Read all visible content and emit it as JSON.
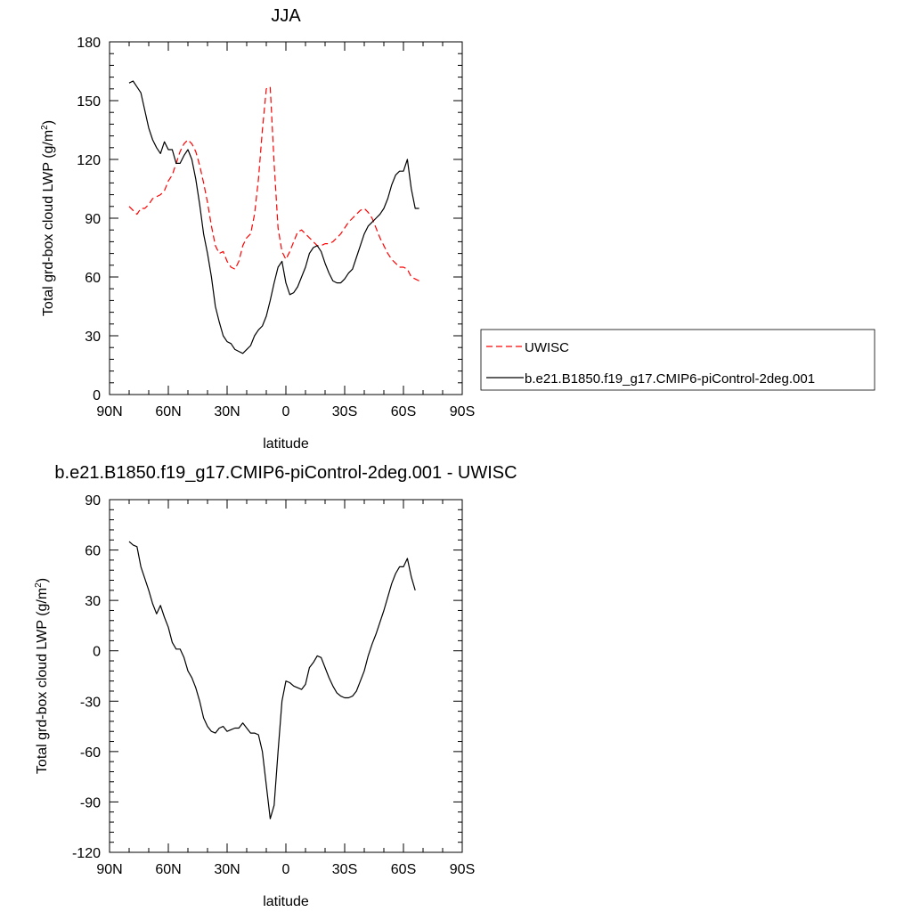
{
  "chart_data": [
    {
      "type": "line",
      "title": "JJA",
      "xlabel": "latitude",
      "ylabel_main": "Total grd-box cloud LWP (g/m",
      "ylabel_sup": "2",
      "ylabel_close": ")",
      "xlim": [
        -90,
        90
      ],
      "ylim": [
        0,
        180
      ],
      "xticks": [
        -90,
        -60,
        -30,
        0,
        30,
        60,
        90
      ],
      "xtick_labels": [
        "90N",
        "60N",
        "30N",
        "0",
        "30S",
        "60S",
        "90S"
      ],
      "yticks": [
        0,
        30,
        60,
        90,
        120,
        150,
        180
      ],
      "ytick_labels": [
        "0",
        "30",
        "60",
        "90",
        "120",
        "150",
        "180"
      ],
      "legend_position": "right",
      "series": [
        {
          "name": "UWISC",
          "color": "#ff0000",
          "dash": "dashed",
          "x": [
            -80,
            -78,
            -76,
            -74,
            -72,
            -70,
            -68,
            -66,
            -64,
            -62,
            -60,
            -58,
            -56,
            -54,
            -52,
            -50,
            -48,
            -46,
            -44,
            -42,
            -40,
            -38,
            -36,
            -34,
            -32,
            -30,
            -28,
            -26,
            -24,
            -22,
            -20,
            -18,
            -16,
            -14,
            -12,
            -10,
            -8,
            -6,
            -4,
            -2,
            0,
            2,
            4,
            6,
            8,
            10,
            12,
            14,
            16,
            18,
            20,
            22,
            24,
            26,
            28,
            30,
            32,
            34,
            36,
            38,
            40,
            42,
            44,
            46,
            48,
            50,
            52,
            54,
            56,
            58,
            60,
            62,
            64,
            66,
            68
          ],
          "y": [
            96,
            94,
            92,
            95,
            95,
            97,
            100,
            101,
            102,
            104,
            109,
            112,
            118,
            124,
            128,
            130,
            128,
            124,
            117,
            108,
            98,
            86,
            76,
            72,
            73,
            68,
            65,
            64,
            68,
            76,
            80,
            82,
            92,
            110,
            135,
            156,
            157,
            118,
            85,
            73,
            69,
            73,
            78,
            83,
            84,
            82,
            80,
            78,
            76,
            76,
            77,
            77,
            78,
            80,
            82,
            85,
            88,
            90,
            92,
            94,
            95,
            93,
            90,
            85,
            80,
            76,
            72,
            69,
            67,
            65,
            65,
            64,
            60,
            59,
            58
          ]
        },
        {
          "name": "b.e21.B1850.f19_g17.CMIP6-piControl-2deg.001",
          "color": "#000000",
          "dash": "solid",
          "x": [
            -80,
            -78,
            -76,
            -74,
            -72,
            -70,
            -68,
            -66,
            -64,
            -62,
            -60,
            -58,
            -56,
            -54,
            -52,
            -50,
            -48,
            -46,
            -44,
            -42,
            -40,
            -38,
            -36,
            -34,
            -32,
            -30,
            -28,
            -26,
            -24,
            -22,
            -20,
            -18,
            -16,
            -14,
            -12,
            -10,
            -8,
            -6,
            -4,
            -2,
            0,
            2,
            4,
            6,
            8,
            10,
            12,
            14,
            16,
            18,
            20,
            22,
            24,
            26,
            28,
            30,
            32,
            34,
            36,
            38,
            40,
            42,
            44,
            46,
            48,
            50,
            52,
            54,
            56,
            58,
            60,
            62,
            64,
            66,
            68
          ],
          "y": [
            159,
            160,
            157,
            154,
            145,
            136,
            130,
            126,
            123,
            129,
            125,
            125,
            118,
            118,
            122,
            125,
            120,
            110,
            97,
            82,
            72,
            60,
            45,
            37,
            30,
            27,
            26,
            23,
            22,
            21,
            23,
            25,
            30,
            33,
            35,
            40,
            48,
            57,
            65,
            68,
            57,
            51,
            52,
            55,
            60,
            65,
            72,
            75,
            76,
            73,
            67,
            62,
            58,
            57,
            57,
            59,
            62,
            64,
            70,
            76,
            82,
            86,
            88,
            90,
            92,
            95,
            100,
            107,
            112,
            114,
            114,
            120,
            105,
            95,
            95
          ]
        }
      ]
    },
    {
      "type": "line",
      "title": "b.e21.B1850.f19_g17.CMIP6-piControl-2deg.001 - UWISC",
      "xlabel": "latitude",
      "ylabel_main": "Total grd-box cloud LWP (g/m",
      "ylabel_sup": "2",
      "ylabel_close": ")",
      "xlim": [
        -90,
        90
      ],
      "ylim": [
        -120,
        90
      ],
      "xticks": [
        -90,
        -60,
        -30,
        0,
        30,
        60,
        90
      ],
      "xtick_labels": [
        "90N",
        "60N",
        "30N",
        "0",
        "30S",
        "60S",
        "90S"
      ],
      "yticks": [
        -120,
        -90,
        -60,
        -30,
        0,
        30,
        60,
        90
      ],
      "ytick_labels": [
        "-120",
        "-90",
        "-60",
        "-30",
        "0",
        "30",
        "60",
        "90"
      ],
      "series": [
        {
          "color": "#000000",
          "dash": "solid",
          "x": [
            -80,
            -78,
            -76,
            -74,
            -72,
            -70,
            -68,
            -66,
            -64,
            -62,
            -60,
            -58,
            -56,
            -54,
            -52,
            -50,
            -48,
            -46,
            -44,
            -42,
            -40,
            -38,
            -36,
            -34,
            -32,
            -30,
            -28,
            -26,
            -24,
            -22,
            -20,
            -18,
            -16,
            -14,
            -12,
            -10,
            -8,
            -6,
            -4,
            -2,
            0,
            2,
            4,
            6,
            8,
            10,
            12,
            14,
            16,
            18,
            20,
            22,
            24,
            26,
            28,
            30,
            32,
            34,
            36,
            38,
            40,
            42,
            44,
            46,
            48,
            50,
            52,
            54,
            56,
            58,
            60,
            62,
            64,
            66
          ],
          "y": [
            65,
            63,
            62,
            50,
            43,
            36,
            28,
            22,
            27,
            20,
            14,
            5,
            1,
            1,
            -4,
            -12,
            -16,
            -22,
            -30,
            -40,
            -45,
            -48,
            -49,
            -46,
            -45,
            -48,
            -47,
            -46,
            -46,
            -43,
            -46,
            -49,
            -49,
            -50,
            -60,
            -80,
            -100,
            -92,
            -60,
            -30,
            -18,
            -19,
            -21,
            -22,
            -23,
            -20,
            -10,
            -7,
            -3,
            -4,
            -10,
            -16,
            -21,
            -25,
            -27,
            -28,
            -28,
            -27,
            -24,
            -18,
            -12,
            -3,
            4,
            10,
            17,
            24,
            32,
            40,
            46,
            50,
            50,
            55,
            44,
            36
          ]
        }
      ]
    }
  ]
}
